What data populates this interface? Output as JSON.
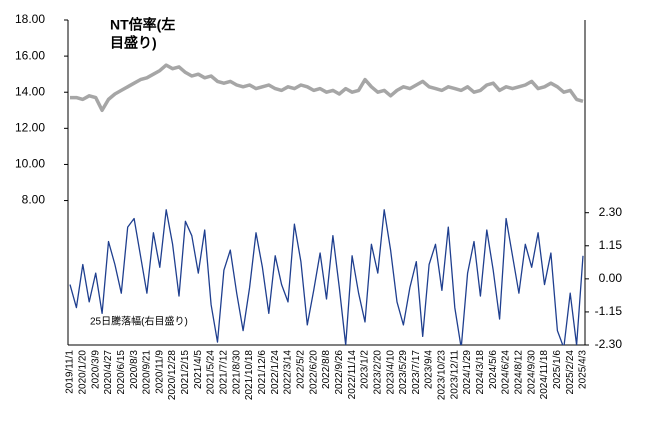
{
  "chart_data": {
    "type": "line",
    "annotations": [
      "NT倍率(左",
      "目盛り)",
      "25日騰落幅(右目盛り)"
    ],
    "categories": [
      "2019/11/1",
      null,
      "2020/1/20",
      null,
      "2020/3/9",
      null,
      "2020/4/27",
      null,
      "2020/6/15",
      null,
      "2020/8/3",
      null,
      "2020/9/21",
      null,
      "2020/11/9",
      null,
      "2020/12/28",
      null,
      "2021/2/15",
      null,
      "2021/4/5",
      null,
      "2021/5/24",
      null,
      "2021/7/12",
      null,
      "2021/8/30",
      null,
      "2021/10/18",
      null,
      "2021/12/6",
      null,
      "2022/1/24",
      null,
      "2022/3/14",
      null,
      "2022/5/2",
      null,
      "2022/6/20",
      null,
      "2022/8/8",
      null,
      "2022/9/26",
      null,
      "2022/11/14",
      null,
      "2023/1/2",
      null,
      "2023/2/20",
      null,
      "2023/4/10",
      null,
      "2023/5/29",
      null,
      "2023/7/17",
      null,
      "2023/9/4",
      null,
      "2023/10/23",
      null,
      "2023/12/11",
      null,
      "2024/1/29",
      null,
      "2024/3/18",
      null,
      "2024/5/6",
      null,
      "2024/6/24",
      null,
      "2024/8/12",
      null,
      "2024/9/30",
      null,
      "2024/11/18",
      null,
      "2025/1/6",
      null,
      "2025/2/24",
      null,
      "2025/4/3"
    ],
    "series": [
      {
        "name": "NT倍率",
        "color": "#a6a6a6",
        "values": [
          13.7,
          13.7,
          13.6,
          13.8,
          13.7,
          13.0,
          13.6,
          13.9,
          14.1,
          14.3,
          14.5,
          14.7,
          14.8,
          15.0,
          15.2,
          15.5,
          15.3,
          15.4,
          15.1,
          14.9,
          15.0,
          14.8,
          14.9,
          14.6,
          14.5,
          14.6,
          14.4,
          14.3,
          14.4,
          14.2,
          14.3,
          14.4,
          14.2,
          14.1,
          14.3,
          14.2,
          14.4,
          14.3,
          14.1,
          14.2,
          14.0,
          14.1,
          13.9,
          14.2,
          14.0,
          14.1,
          14.7,
          14.3,
          14.0,
          14.1,
          13.8,
          14.1,
          14.3,
          14.2,
          14.4,
          14.6,
          14.3,
          14.2,
          14.1,
          14.3,
          14.2,
          14.1,
          14.3,
          14.0,
          14.1,
          14.4,
          14.5,
          14.1,
          14.3,
          14.2,
          14.3,
          14.4,
          14.6,
          14.2,
          14.3,
          14.5,
          14.3,
          14.0,
          14.1,
          13.6,
          13.5
        ]
      },
      {
        "name": "25日騰落幅",
        "color": "#1f3f8f",
        "axis": "y2",
        "values": [
          -0.2,
          -1.0,
          0.5,
          -0.8,
          0.2,
          -1.2,
          1.3,
          0.5,
          -0.5,
          1.8,
          2.1,
          0.8,
          -0.5,
          1.6,
          0.4,
          2.4,
          1.2,
          -0.6,
          2.0,
          1.5,
          0.2,
          1.7,
          -0.9,
          -2.2,
          0.3,
          1.0,
          -0.5,
          -1.8,
          -0.3,
          1.6,
          0.4,
          -1.2,
          0.8,
          -0.2,
          -0.8,
          1.9,
          0.6,
          -1.6,
          -0.4,
          0.9,
          -0.7,
          1.5,
          -0.3,
          -2.3,
          0.8,
          -0.5,
          -1.5,
          1.2,
          0.2,
          2.4,
          1.0,
          -0.8,
          -1.6,
          -0.3,
          0.6,
          -2.0,
          0.5,
          1.2,
          -0.4,
          1.8,
          -1.0,
          -2.4,
          0.2,
          1.3,
          -0.6,
          1.7,
          0.3,
          -1.4,
          2.1,
          0.8,
          -0.5,
          1.2,
          0.4,
          1.6,
          -0.2,
          0.9,
          -1.8,
          -2.4,
          -0.5,
          -2.3,
          0.8
        ]
      }
    ],
    "ylim": [
      0,
      18
    ],
    "yticks": [
      {
        "value": 18,
        "label": "18.00"
      },
      {
        "value": 16,
        "label": "16.00"
      },
      {
        "value": 14,
        "label": "14.00"
      },
      {
        "value": 12,
        "label": "12.00"
      },
      {
        "value": 10,
        "label": "10.00"
      },
      {
        "value": 8,
        "label": "8.00"
      }
    ],
    "y2lim": [
      -2.3,
      9.0
    ],
    "y2ticks": [
      {
        "value": 2.3,
        "label": "2.30"
      },
      {
        "value": 1.15,
        "label": "1.15"
      },
      {
        "value": 0,
        "label": "0.00"
      },
      {
        "value": -1.15,
        "label": "-1.15"
      },
      {
        "value": -2.3,
        "label": "-2.30"
      }
    ],
    "grid": false
  }
}
